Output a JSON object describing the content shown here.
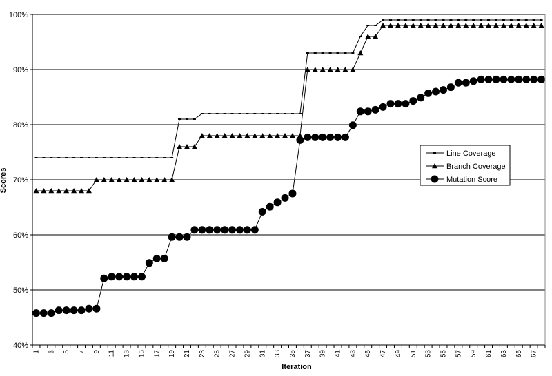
{
  "chart_data": {
    "type": "line",
    "xlabel": "Iteration",
    "ylabel": "Scores",
    "ylim": [
      40,
      100
    ],
    "yticks": [
      "40%",
      "50%",
      "60%",
      "70%",
      "80%",
      "90%",
      "100%"
    ],
    "x": [
      1,
      2,
      3,
      4,
      5,
      6,
      7,
      8,
      9,
      10,
      11,
      12,
      13,
      14,
      15,
      16,
      17,
      18,
      19,
      20,
      21,
      22,
      23,
      24,
      25,
      26,
      27,
      28,
      29,
      30,
      31,
      32,
      33,
      34,
      35,
      36,
      37,
      38,
      39,
      40,
      41,
      42,
      43,
      44,
      45,
      46,
      47,
      48,
      49,
      50,
      51,
      52,
      53,
      54,
      55,
      56,
      57,
      58,
      59,
      60,
      61,
      62,
      63,
      64,
      65,
      66,
      67,
      68
    ],
    "xtick_labels": [
      "1",
      "3",
      "5",
      "7",
      "9",
      "11",
      "13",
      "15",
      "17",
      "19",
      "21",
      "23",
      "25",
      "27",
      "29",
      "31",
      "33",
      "35",
      "37",
      "39",
      "41",
      "43",
      "45",
      "47",
      "49",
      "51",
      "53",
      "55",
      "57",
      "59",
      "61",
      "63",
      "65",
      "67"
    ],
    "grid": "horizontal",
    "legend_position": "right",
    "series": [
      {
        "name": "Line Coverage",
        "marker": "dash",
        "values": [
          74,
          74,
          74,
          74,
          74,
          74,
          74,
          74,
          74,
          74,
          74,
          74,
          74,
          74,
          74,
          74,
          74,
          74,
          74,
          81,
          81,
          81,
          82,
          82,
          82,
          82,
          82,
          82,
          82,
          82,
          82,
          82,
          82,
          82,
          82,
          82,
          93,
          93,
          93,
          93,
          93,
          93,
          93,
          96,
          98,
          98,
          99,
          99,
          99,
          99,
          99,
          99,
          99,
          99,
          99,
          99,
          99,
          99,
          99,
          99,
          99,
          99,
          99,
          99,
          99,
          99,
          99,
          99
        ]
      },
      {
        "name": "Branch Coverage",
        "marker": "triangle",
        "values": [
          68,
          68,
          68,
          68,
          68,
          68,
          68,
          68,
          70,
          70,
          70,
          70,
          70,
          70,
          70,
          70,
          70,
          70,
          70,
          76,
          76,
          76,
          78,
          78,
          78,
          78,
          78,
          78,
          78,
          78,
          78,
          78,
          78,
          78,
          78,
          78,
          90,
          90,
          90,
          90,
          90,
          90,
          90,
          93,
          96,
          96,
          98,
          98,
          98,
          98,
          98,
          98,
          98,
          98,
          98,
          98,
          98,
          98,
          98,
          98,
          98,
          98,
          98,
          98,
          98,
          98,
          98,
          98
        ]
      },
      {
        "name": "Mutation Score",
        "marker": "circle",
        "values": [
          45.8,
          45.8,
          45.8,
          46.3,
          46.3,
          46.3,
          46.3,
          46.6,
          46.6,
          52.1,
          52.4,
          52.4,
          52.4,
          52.4,
          52.4,
          54.9,
          55.7,
          55.7,
          59.6,
          59.6,
          59.6,
          60.9,
          60.9,
          60.9,
          60.9,
          60.9,
          60.9,
          60.9,
          60.9,
          60.9,
          64.2,
          65.1,
          65.9,
          66.7,
          67.5,
          77.2,
          77.7,
          77.7,
          77.7,
          77.7,
          77.7,
          77.7,
          79.9,
          82.4,
          82.4,
          82.7,
          83.2,
          83.8,
          83.8,
          83.8,
          84.3,
          84.9,
          85.7,
          86.0,
          86.3,
          86.8,
          87.6,
          87.6,
          87.9,
          88.2,
          88.2,
          88.2,
          88.2,
          88.2,
          88.2,
          88.2,
          88.2,
          88.2
        ]
      }
    ]
  }
}
